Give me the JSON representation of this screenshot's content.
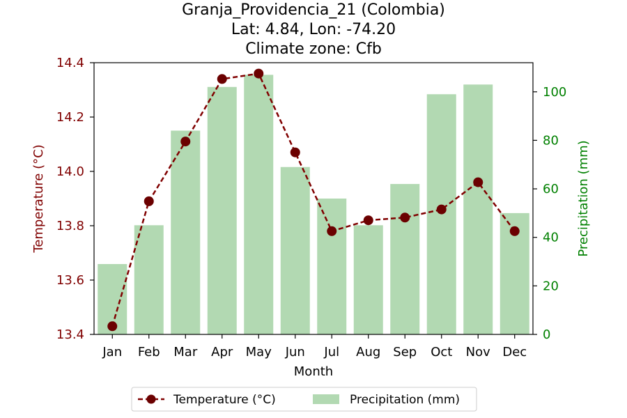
{
  "chart_data": {
    "type": "bar+line",
    "title_lines": [
      "Granja_Providencia_21 (Colombia)",
      "Lat: 4.84, Lon: -74.20",
      "Climate zone: Cfb"
    ],
    "xlabel": "Month",
    "categories": [
      "Jan",
      "Feb",
      "Mar",
      "Apr",
      "May",
      "Jun",
      "Jul",
      "Aug",
      "Sep",
      "Oct",
      "Nov",
      "Dec"
    ],
    "temperature": {
      "name": "Temperature (°C)",
      "axis_label": "Temperature (°C)",
      "values": [
        13.43,
        13.89,
        14.11,
        14.34,
        14.36,
        14.07,
        13.78,
        13.82,
        13.83,
        13.86,
        13.96,
        13.78
      ],
      "ylim": [
        13.4,
        14.4
      ],
      "ticks": [
        13.4,
        13.6,
        13.8,
        14.0,
        14.2,
        14.4
      ],
      "tick_labels": [
        "13.4",
        "13.6",
        "13.8",
        "14.0",
        "14.2",
        "14.4"
      ],
      "color": "#800000"
    },
    "precipitation": {
      "name": "Precipitation (mm)",
      "axis_label": "Precipitation (mm)",
      "values": [
        29,
        45,
        84,
        102,
        107,
        69,
        56,
        45,
        62,
        99,
        103,
        50
      ],
      "ylim": [
        0,
        112
      ],
      "ticks": [
        0,
        20,
        40,
        60,
        80,
        100
      ],
      "tick_labels": [
        "0",
        "20",
        "40",
        "60",
        "80",
        "100"
      ],
      "color": "#b2d9b2",
      "axis_color": "#008000"
    },
    "legend_position": "bottom-center",
    "grid": false
  }
}
